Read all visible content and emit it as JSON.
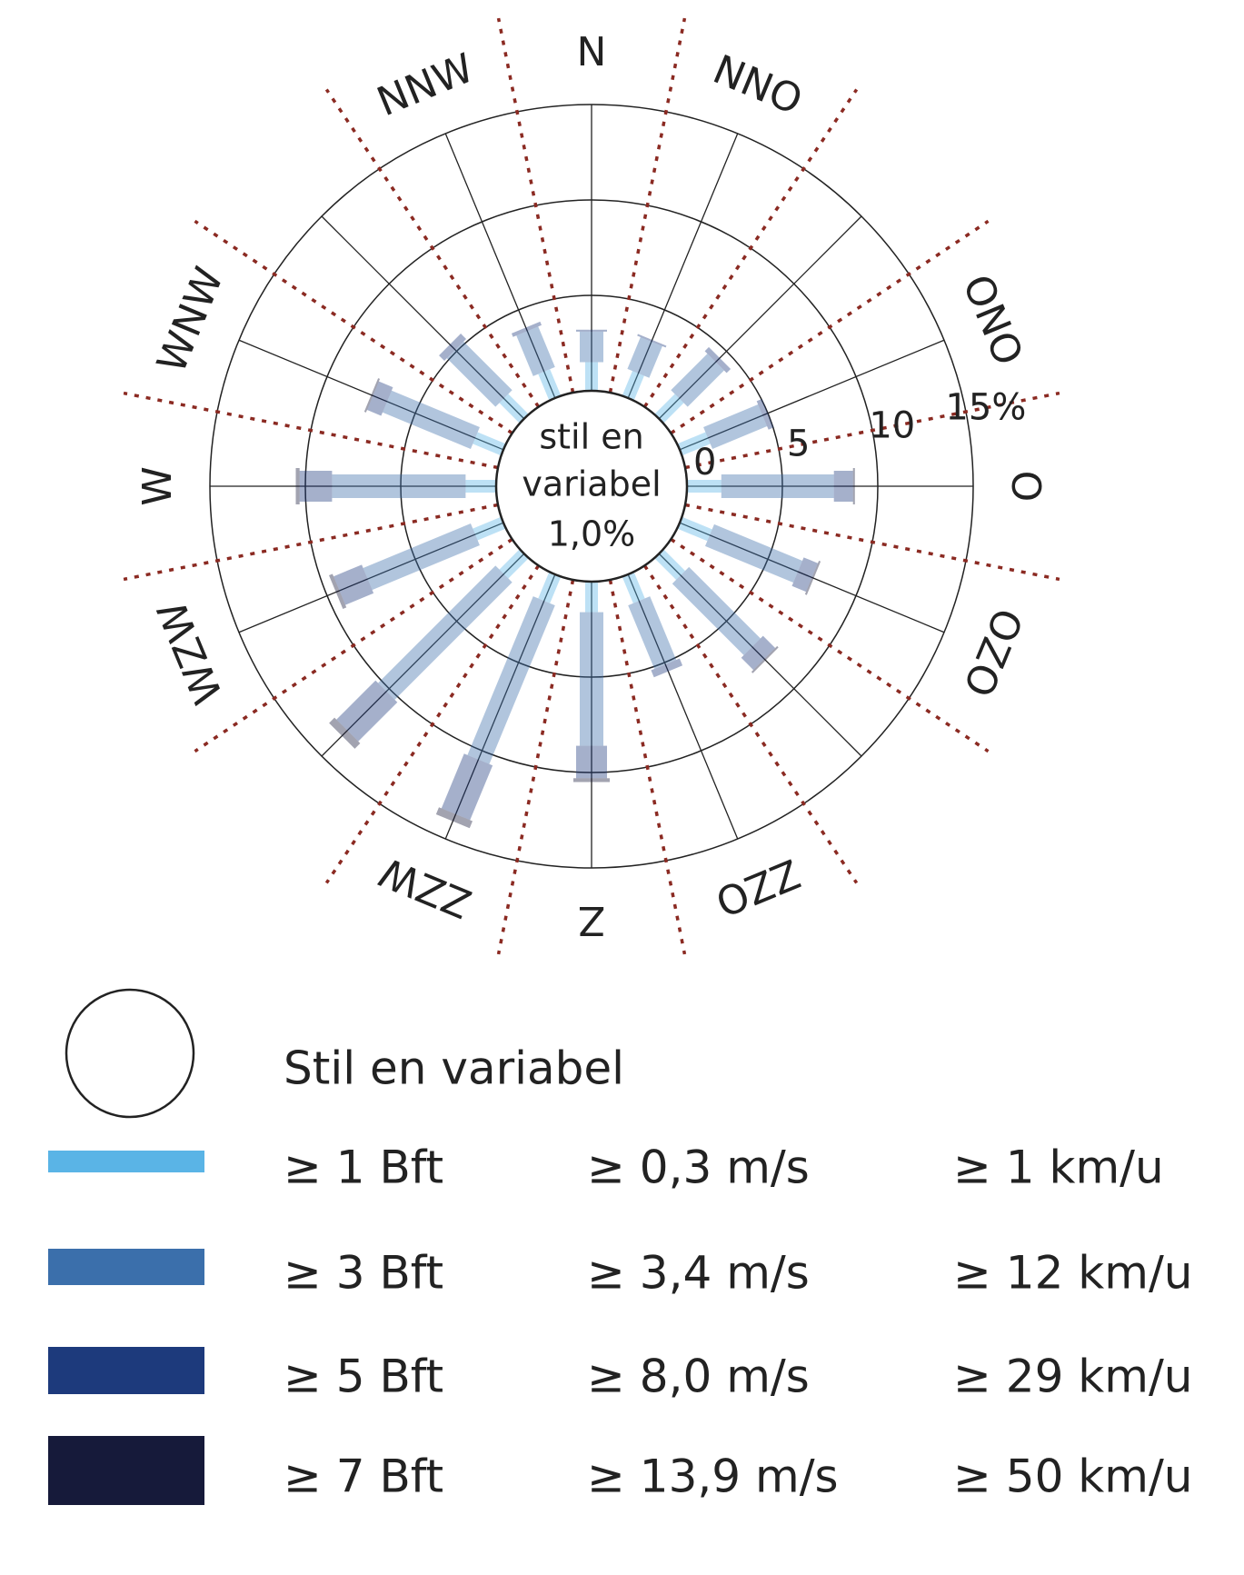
{
  "chart_data": {
    "type": "windrose",
    "categories": [
      "N",
      "NNO",
      null,
      "ONO",
      "O",
      "OZO",
      null,
      "ZZO",
      "Z",
      "ZZW",
      null,
      "WZW",
      "W",
      "WNW",
      null,
      "NNW"
    ],
    "rlim": [
      0,
      15
    ],
    "rticks": [
      0,
      5,
      10,
      {
        "value": 15,
        "label": "15%"
      }
    ],
    "calm_label": [
      "stil en",
      "variabel"
    ],
    "calm_value": 1.0,
    "calm_value_label": "1,0%",
    "legend_calm_label": "Stil en variabel",
    "series": [
      {
        "name": "≥ 1 Bft",
        "speed_ms": "≥ 0,3 m/s",
        "speed_kmh": "≥ 1 km/u",
        "color": "#5ab4e6",
        "values": [
          1.5,
          1.4,
          1.5,
          1.6,
          1.8,
          1.7,
          1.6,
          1.5,
          1.6,
          1.5,
          1.5,
          1.6,
          1.6,
          1.6,
          1.5,
          1.5
        ]
      },
      {
        "name": "≥ 3 Bft",
        "speed_ms": "≥ 3,4 m/s",
        "speed_kmh": "≥ 12 km/u",
        "color": "#3b6fab",
        "values": [
          1.6,
          1.8,
          2.7,
          3.1,
          5.9,
          5.0,
          5.3,
          3.6,
          7.0,
          9.0,
          8.7,
          6.1,
          7.0,
          5.0,
          3.6,
          2.3
        ]
      },
      {
        "name": "≥ 5 Bft",
        "speed_ms": "≥ 8,0 m/s",
        "speed_kmh": "≥ 29 km/u",
        "color": "#1d3a7c",
        "values": [
          0.1,
          0.1,
          0.3,
          0.3,
          1.0,
          0.8,
          0.9,
          0.4,
          1.7,
          3.1,
          2.9,
          1.6,
          1.7,
          0.8,
          0.4,
          0.2
        ]
      },
      {
        "name": "≥ 7 Bft",
        "speed_ms": "≥ 13,9 m/s",
        "speed_kmh": "≥ 50 km/u",
        "color": "#161a3a",
        "values": [
          0,
          0,
          0,
          0,
          0.1,
          0.1,
          0.1,
          0,
          0.2,
          0.4,
          0.4,
          0.2,
          0.2,
          0.1,
          0,
          0
        ]
      }
    ]
  }
}
